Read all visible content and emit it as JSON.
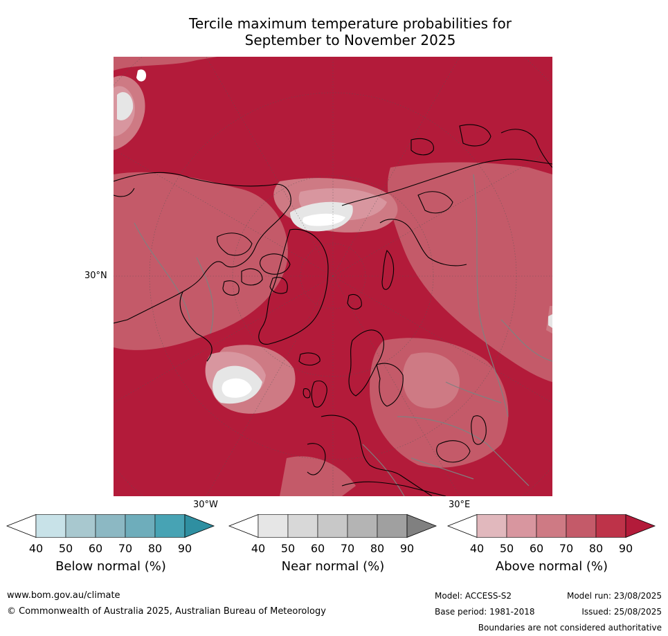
{
  "title_line1": "Tercile maximum temperature probabilities for",
  "title_line2": "September to November 2025",
  "map": {
    "projection": "north-polar-stereographic",
    "ocean_land_base_color": "#b31b3a",
    "coastline_color": "#000000",
    "border_color": "#808080",
    "lat_label": "30°N",
    "lon_label_west": "30°W",
    "lon_label_east": "30°E"
  },
  "colorbars": [
    {
      "name": "below",
      "label": "Below normal (%)",
      "ticks": [
        "40",
        "50",
        "60",
        "70",
        "80",
        "90"
      ],
      "low_color": "#ffffff",
      "colors": [
        "#c8e2e8",
        "#a8c8cf",
        "#8cb8c3",
        "#6eadbb",
        "#47a3b4"
      ],
      "high_color": "#2f8fa1"
    },
    {
      "name": "near",
      "label": "Near normal (%)",
      "ticks": [
        "40",
        "50",
        "60",
        "70",
        "80",
        "90"
      ],
      "low_color": "#ffffff",
      "colors": [
        "#e6e6e6",
        "#d8d8d8",
        "#c8c8c8",
        "#b4b4b4",
        "#a0a0a0"
      ],
      "high_color": "#808080"
    },
    {
      "name": "above",
      "label": "Above normal (%)",
      "ticks": [
        "40",
        "50",
        "60",
        "70",
        "80",
        "90"
      ],
      "low_color": "#ffffff",
      "colors": [
        "#e1b8bd",
        "#d8969f",
        "#ce7a84",
        "#c45a69",
        "#be3349"
      ],
      "high_color": "#b31b3a"
    }
  ],
  "footer": {
    "url": "www.bom.gov.au/climate",
    "copyright": "© Commonwealth of Australia 2025, Australian Bureau of Meteorology",
    "model": "Model: ACCESS-S2",
    "model_run": "Model run: 23/08/2025",
    "base_period": "Base period: 1981-2018",
    "issued": "Issued: 25/08/2025",
    "disclaimer": "Boundaries are not considered authoritative"
  }
}
